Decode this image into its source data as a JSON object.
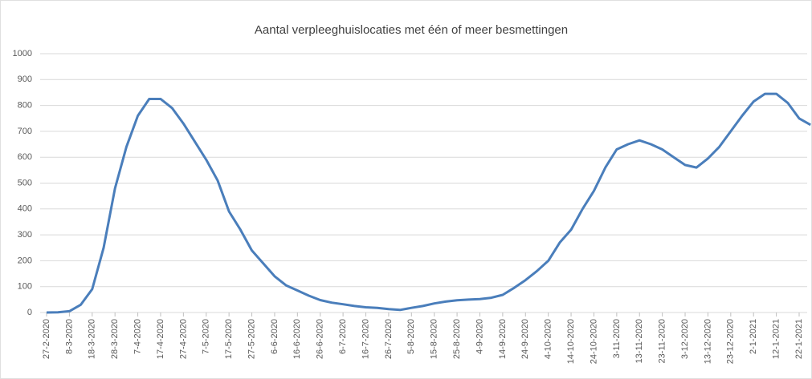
{
  "chart_data": {
    "type": "line",
    "title": "Aantal verpleeghuislocaties met één of meer besmettingen",
    "categories": [
      "27-2-2020",
      null,
      "8-3-2020",
      null,
      "18-3-2020",
      null,
      "28-3-2020",
      null,
      "7-4-2020",
      null,
      "17-4-2020",
      null,
      "27-4-2020",
      null,
      "7-5-2020",
      null,
      "17-5-2020",
      null,
      "27-5-2020",
      null,
      "6-6-2020",
      null,
      "16-6-2020",
      null,
      "26-6-2020",
      null,
      "6-7-2020",
      null,
      "16-7-2020",
      null,
      "26-7-2020",
      null,
      "5-8-2020",
      null,
      "15-8-2020",
      null,
      "25-8-2020",
      null,
      "4-9-2020",
      null,
      "14-9-2020",
      null,
      "24-9-2020",
      null,
      "4-10-2020",
      null,
      "14-10-2020",
      null,
      "24-10-2020",
      null,
      "3-11-2020",
      null,
      "13-11-2020",
      null,
      "23-11-2020",
      null,
      "3-12-2020",
      null,
      "13-12-2020",
      null,
      "23-12-2020",
      null,
      "2-1-2021",
      null,
      "12-1-2021",
      null,
      "22-1-2021",
      null
    ],
    "series": [
      {
        "color": "#4a7ebb",
        "values": [
          0,
          1,
          5,
          30,
          90,
          250,
          480,
          640,
          760,
          825,
          825,
          790,
          730,
          660,
          590,
          510,
          390,
          320,
          240,
          190,
          140,
          105,
          85,
          65,
          48,
          38,
          32,
          25,
          20,
          18,
          13,
          10,
          18,
          25,
          35,
          42,
          47,
          50,
          52,
          57,
          68,
          95,
          125,
          160,
          200,
          270,
          320,
          400,
          470,
          560,
          630,
          650,
          665,
          650,
          630,
          600,
          570,
          560,
          595,
          640,
          700,
          760,
          815,
          845,
          845,
          810,
          750,
          725
        ]
      }
    ],
    "ylim": [
      0,
      1000
    ],
    "yticks": [
      0,
      100,
      200,
      300,
      400,
      500,
      600,
      700,
      800,
      900,
      1000
    ],
    "grid": true
  }
}
